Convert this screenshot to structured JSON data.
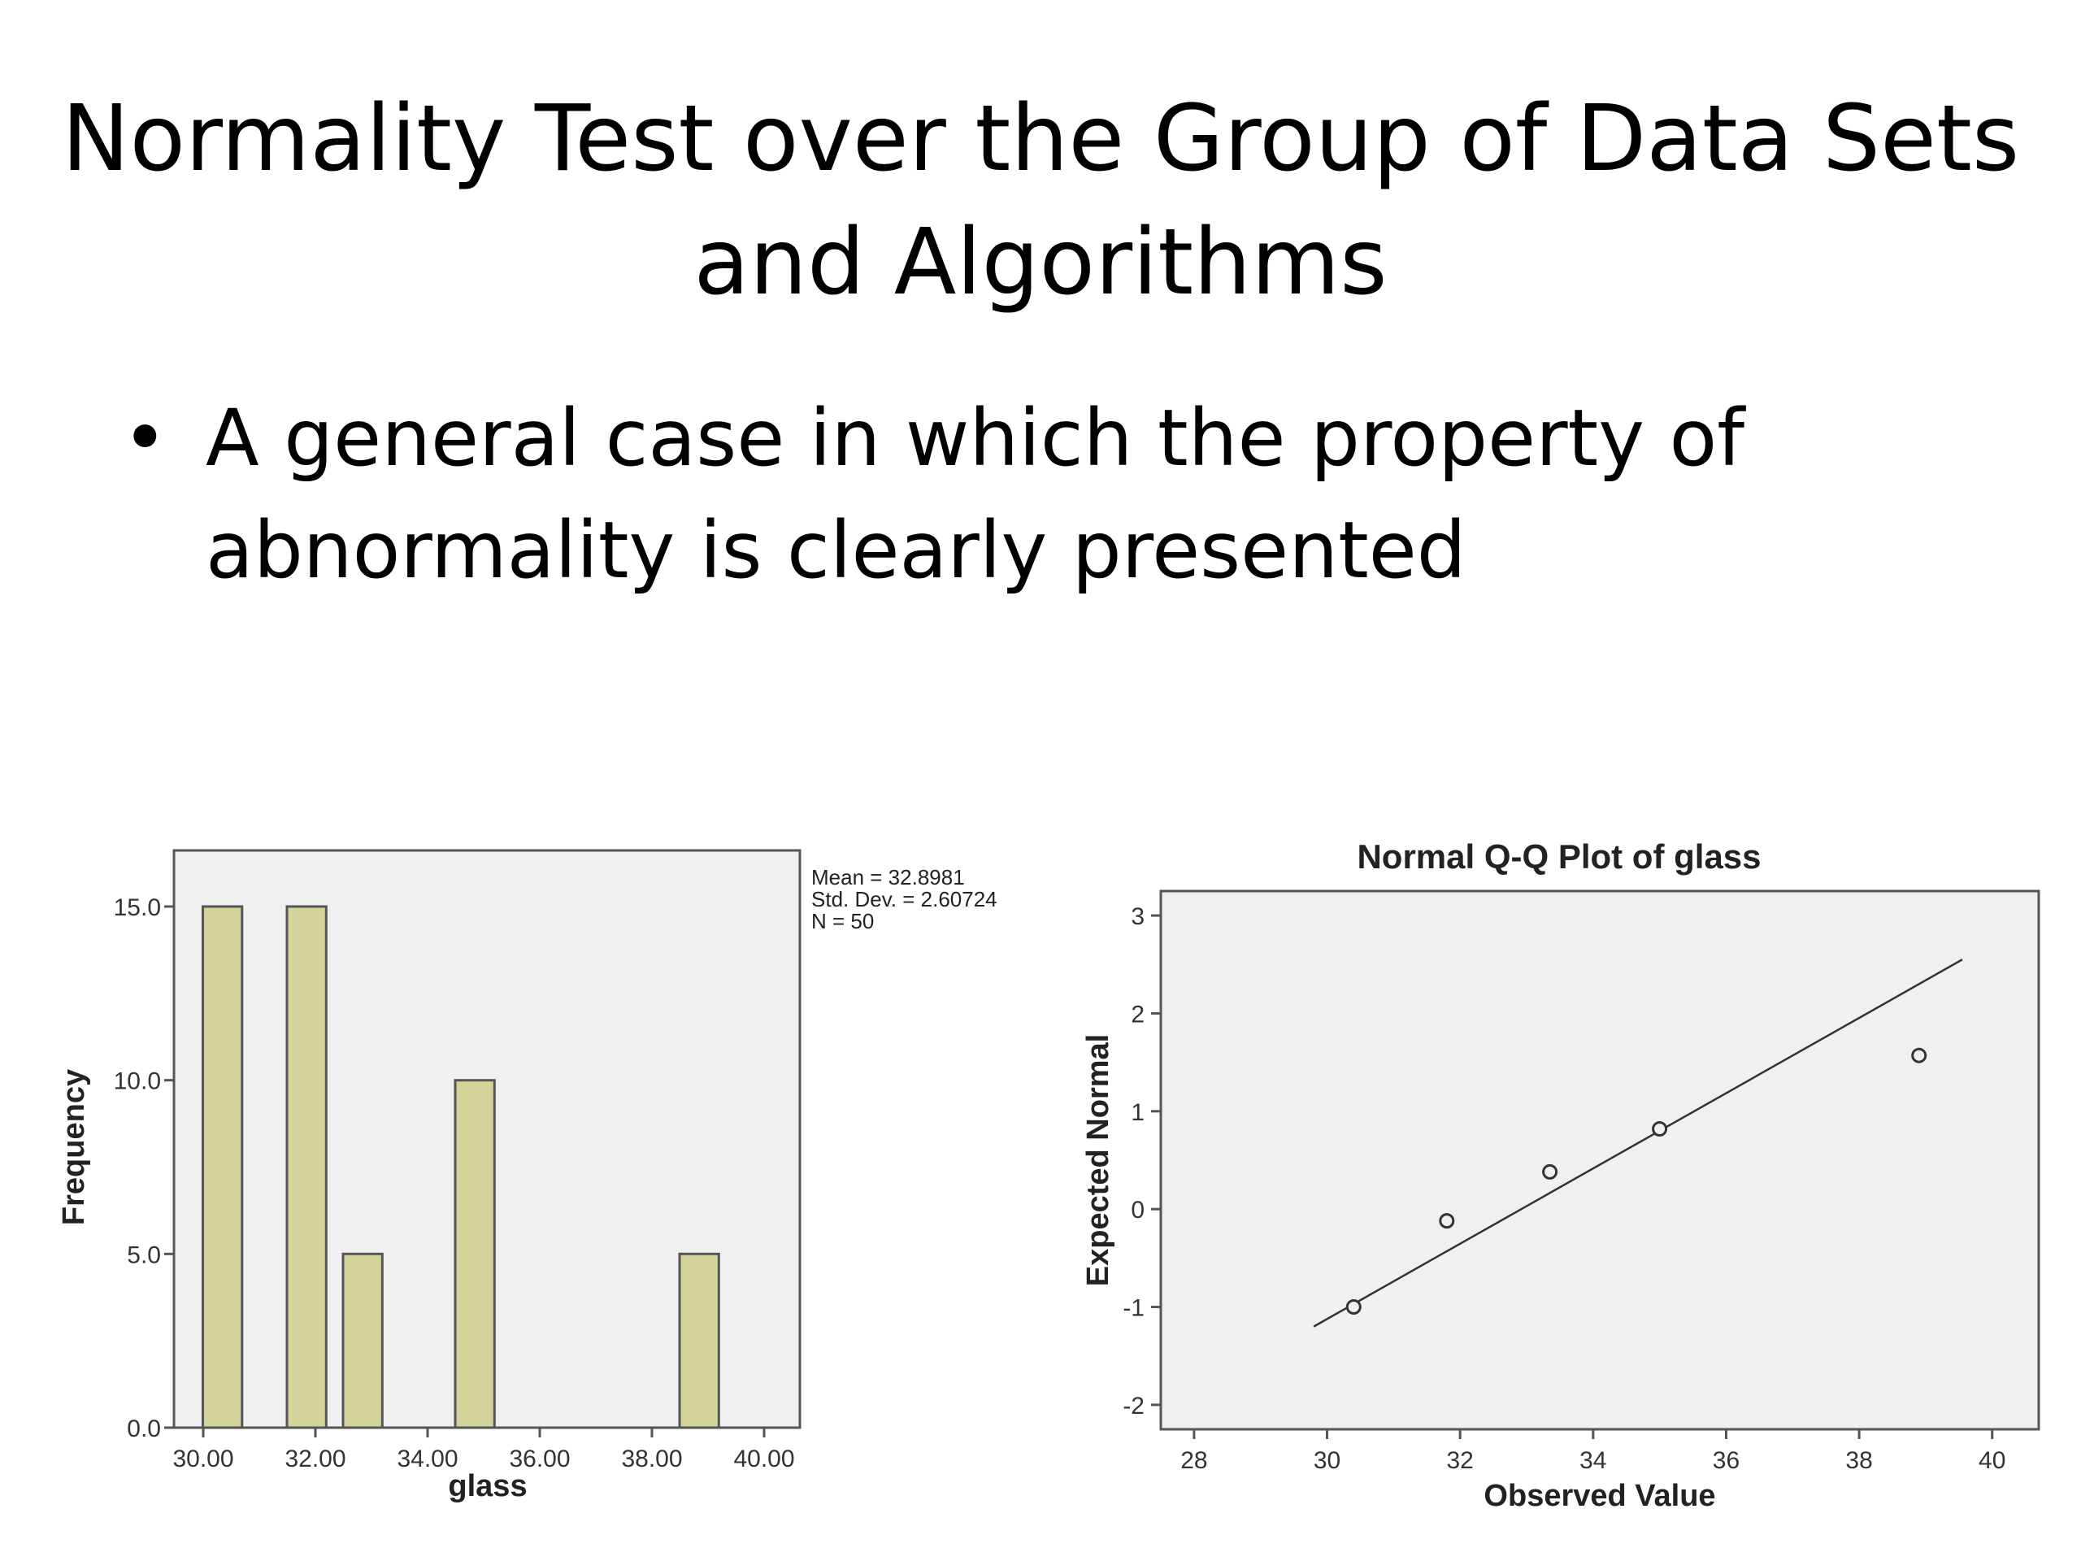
{
  "slide": {
    "title_lines": [
      "Normality Test over the Group of Data Sets",
      "and Algorithms"
    ],
    "bullets": [
      {
        "lines": [
          "A general case in which the property of",
          "abnormality is clearly presented"
        ]
      }
    ]
  },
  "chart_data": [
    {
      "type": "bar",
      "title": "",
      "xlabel": "glass",
      "ylabel": "Frequency",
      "bin_edges": [
        30.5,
        32.0,
        33.0,
        35.0,
        39.0
      ],
      "bin_width": 0.7,
      "values": [
        15,
        15,
        5,
        10,
        5
      ],
      "xlim": [
        30,
        40
      ],
      "ylim": [
        0,
        15
      ],
      "x_ticks": [
        "30.00",
        "32.00",
        "34.00",
        "36.00",
        "38.00",
        "40.00"
      ],
      "y_ticks": [
        "0.0",
        "5.0",
        "10.0",
        "15.0"
      ],
      "stats": [
        "Mean = 32.8981",
        "Std. Dev. = 2.60724",
        "N = 50"
      ],
      "bar_color": "#d4d39a",
      "plot_background": "#f0f0f0"
    },
    {
      "type": "scatter",
      "title": "Normal Q-Q Plot of glass",
      "xlabel": "Observed Value",
      "ylabel": "Expected Normal",
      "points": [
        {
          "x": 30.4,
          "y": -1.0
        },
        {
          "x": 31.8,
          "y": -0.12
        },
        {
          "x": 33.35,
          "y": 0.38
        },
        {
          "x": 35.0,
          "y": 0.82
        },
        {
          "x": 38.9,
          "y": 1.57
        }
      ],
      "reference_line": {
        "from": {
          "x": 29.8,
          "y": -1.2
        },
        "to": {
          "x": 39.55,
          "y": 2.55
        }
      },
      "xlim": [
        27.5,
        40.7
      ],
      "ylim": [
        -2.25,
        3.25
      ],
      "x_ticks": [
        "28",
        "30",
        "32",
        "34",
        "36",
        "38",
        "40"
      ],
      "y_ticks": [
        "-2",
        "-1",
        "0",
        "1",
        "2",
        "3"
      ],
      "plot_background": "#f0f0f0"
    }
  ]
}
